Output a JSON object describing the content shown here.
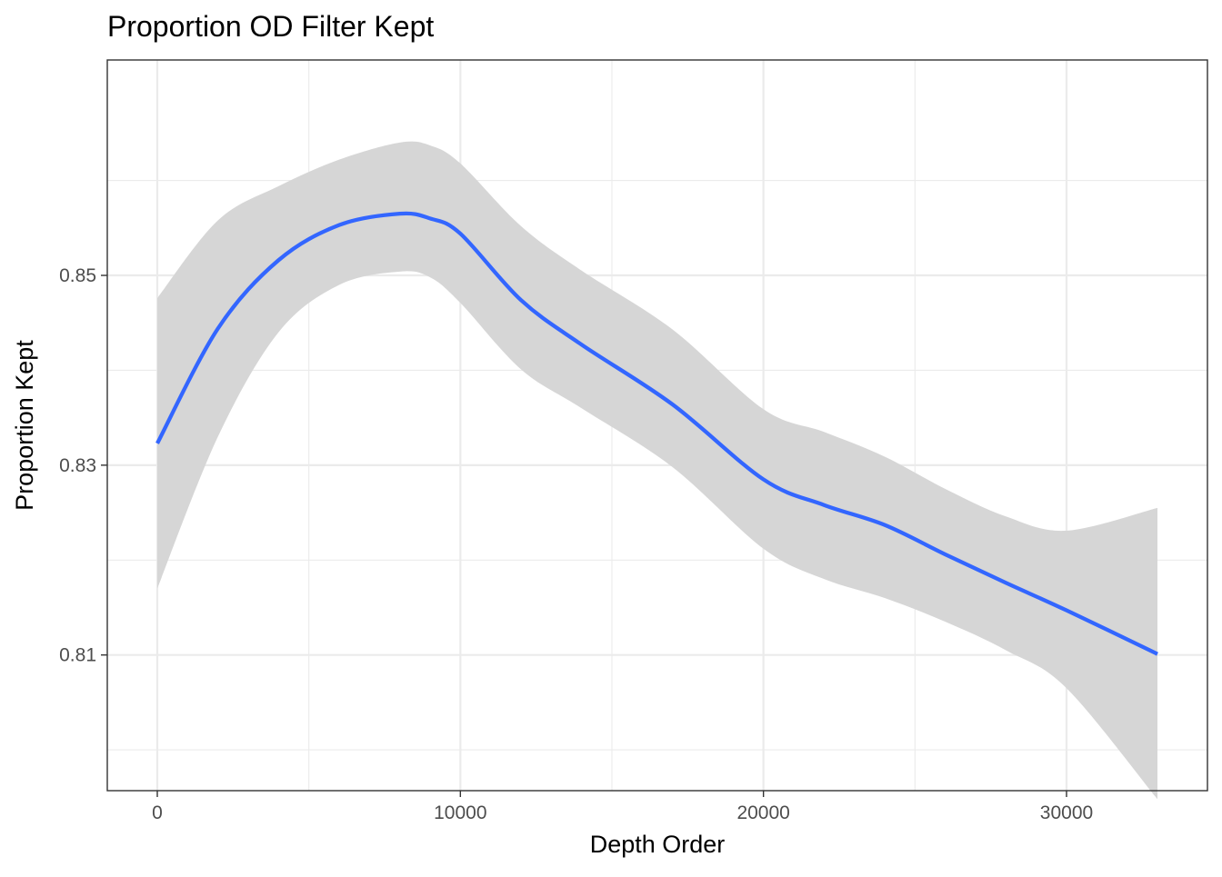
{
  "chart_data": {
    "type": "line",
    "title": "Proportion OD Filter Kept",
    "xlabel": "Depth Order",
    "ylabel": "Proportion Kept",
    "xlim": [
      -1650,
      34650
    ],
    "ylim": [
      0.7957,
      0.8727
    ],
    "x_ticks": [
      0,
      10000,
      20000,
      30000
    ],
    "x_tick_labels": [
      "0",
      "10000",
      "20000",
      "30000"
    ],
    "y_ticks": [
      0.81,
      0.83,
      0.85
    ],
    "y_tick_labels": [
      "0.81",
      "0.83",
      "0.85"
    ],
    "x_minor_breaks": [
      5000,
      15000,
      25000
    ],
    "y_minor_breaks": [
      0.8,
      0.82,
      0.84,
      0.86
    ],
    "grid": true,
    "legend": "none",
    "colors": {
      "line": "#3366ff",
      "ribbon": "#d6d6d6",
      "grid": "#ebebeb",
      "panel_border": "#333333"
    },
    "series": [
      {
        "x": [
          0,
          2000,
          4000,
          6000,
          8000,
          9000,
          10000,
          12000,
          14000,
          17000,
          20000,
          22000,
          24000,
          26000,
          28000,
          30000,
          33000
        ],
        "y": [
          0.8323,
          0.8444,
          0.8516,
          0.8553,
          0.8565,
          0.856,
          0.8544,
          0.8474,
          0.8427,
          0.8364,
          0.8285,
          0.8258,
          0.8237,
          0.8206,
          0.8176,
          0.8147,
          0.8101
        ],
        "ymin": [
          0.817,
          0.833,
          0.844,
          0.849,
          0.8504,
          0.8498,
          0.8471,
          0.8401,
          0.836,
          0.8298,
          0.8212,
          0.818,
          0.816,
          0.8135,
          0.8105,
          0.8065,
          0.7948
        ],
        "ymax": [
          0.8476,
          0.8558,
          0.8594,
          0.8622,
          0.864,
          0.8637,
          0.8618,
          0.8552,
          0.8505,
          0.8443,
          0.8359,
          0.8335,
          0.8309,
          0.8275,
          0.8246,
          0.8231,
          0.8255
        ]
      }
    ]
  }
}
